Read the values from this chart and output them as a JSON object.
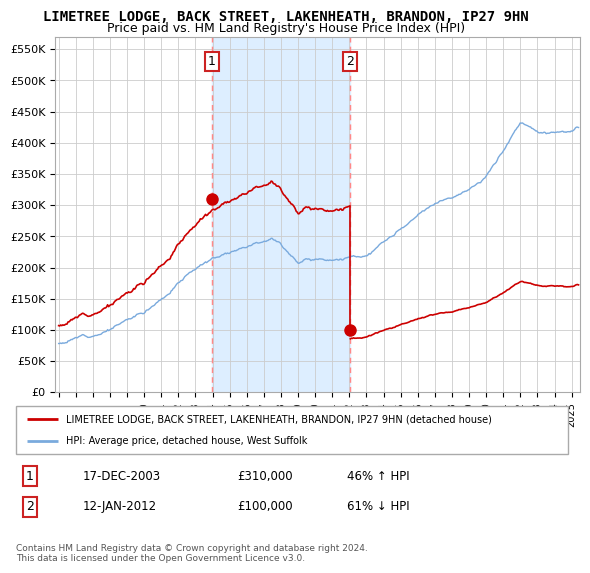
{
  "title": "LIMETREE LODGE, BACK STREET, LAKENHEATH, BRANDON, IP27 9HN",
  "subtitle": "Price paid vs. HM Land Registry's House Price Index (HPI)",
  "ylabel_ticks": [
    "£0",
    "£50K",
    "£100K",
    "£150K",
    "£200K",
    "£250K",
    "£300K",
    "£350K",
    "£400K",
    "£450K",
    "£500K",
    "£550K"
  ],
  "ytick_values": [
    0,
    50000,
    100000,
    150000,
    200000,
    250000,
    300000,
    350000,
    400000,
    450000,
    500000,
    550000
  ],
  "ylim": [
    0,
    570000
  ],
  "xlim_start": 1994.8,
  "xlim_end": 2025.5,
  "red_line_color": "#cc0000",
  "blue_line_color": "#7aaadd",
  "highlight_bg_color": "#ddeeff",
  "vline_color": "#ff8888",
  "point1_x": 2003.96,
  "point1_y": 310000,
  "point2_x": 2012.04,
  "point2_y": 100000,
  "legend_red_label": "LIMETREE LODGE, BACK STREET, LAKENHEATH, BRANDON, IP27 9HN (detached house)",
  "legend_blue_label": "HPI: Average price, detached house, West Suffolk",
  "footer": "Contains HM Land Registry data © Crown copyright and database right 2024.\nThis data is licensed under the Open Government Licence v3.0.",
  "title_fontsize": 10,
  "subtitle_fontsize": 9
}
